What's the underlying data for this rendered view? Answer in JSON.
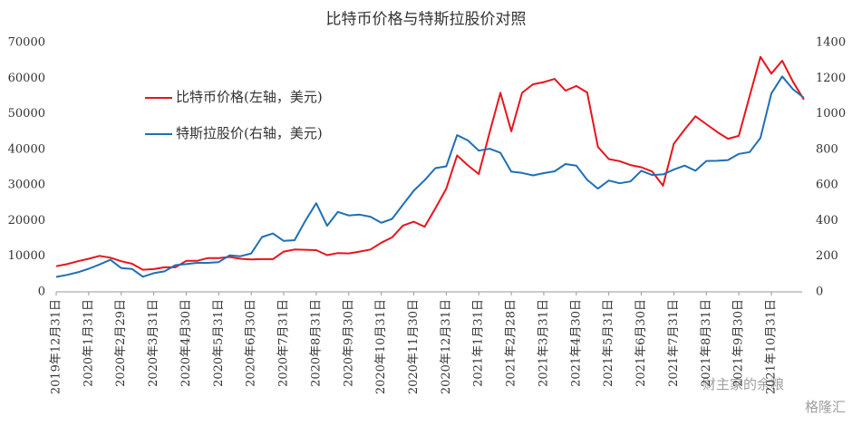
{
  "chart_data": {
    "type": "line",
    "title": "比特币价格与特斯拉股价对照",
    "categories": [
      "2019年12月31日",
      null,
      null,
      "2020年1月31日",
      null,
      null,
      "2020年2月29日",
      null,
      null,
      "2020年3月31日",
      null,
      null,
      "2020年4月30日",
      null,
      null,
      "2020年5月31日",
      null,
      null,
      "2020年6月30日",
      null,
      null,
      "2020年7月31日",
      null,
      null,
      "2020年8月31日",
      null,
      null,
      "2020年9月30日",
      null,
      null,
      "2020年10月31日",
      null,
      null,
      "2020年11月30日",
      null,
      null,
      "2020年12月31日",
      null,
      null,
      "2021年1月31日",
      null,
      null,
      "2021年2月28日",
      null,
      null,
      "2021年3月31日",
      null,
      null,
      "2021年4月30日",
      null,
      null,
      "2021年5月31日",
      null,
      null,
      "2021年6月30日",
      null,
      null,
      "2021年7月31日",
      null,
      null,
      "2021年8月31日",
      null,
      null,
      "2021年9月30日",
      null,
      null,
      "2021年10月31日",
      null,
      null,
      null
    ],
    "series": [
      {
        "name": "比特币价格(左轴，美元)",
        "color": "#e8141c",
        "axis": "y",
        "values": [
          7200,
          7800,
          8600,
          9300,
          10100,
          9600,
          8600,
          7900,
          6200,
          6400,
          6900,
          6900,
          8700,
          8700,
          9500,
          9500,
          9800,
          9300,
          9100,
          9200,
          9200,
          11300,
          11900,
          11800,
          11700,
          10300,
          10900,
          10800,
          11300,
          11900,
          13800,
          15300,
          18600,
          19700,
          18300,
          23500,
          29000,
          38300,
          35500,
          33100,
          44800,
          55900,
          45100,
          55900,
          58300,
          58900,
          59800,
          56500,
          57800,
          56000,
          40700,
          37300,
          36700,
          35600,
          35000,
          33800,
          29800,
          41600,
          45600,
          49300,
          47100,
          44900,
          43000,
          43800,
          55000,
          66000,
          61300,
          64900,
          59000,
          54000
        ]
      },
      {
        "name": "特斯拉股价(右轴，美元)",
        "color": "#1f6fb5",
        "axis": "y2",
        "values": [
          84,
          95,
          110,
          130,
          154,
          180,
          134,
          129,
          85,
          105,
          115,
          150,
          156,
          163,
          163,
          167,
          205,
          200,
          216,
          308,
          328,
          286,
          290,
          400,
          498,
          371,
          449,
          429,
          434,
          422,
          388,
          410,
          489,
          568,
          627,
          695,
          705,
          880,
          850,
          793,
          804,
          781,
          675,
          668,
          654,
          667,
          677,
          718,
          709,
          629,
          580,
          625,
          610,
          620,
          680,
          656,
          660,
          687,
          709,
          680,
          735,
          736,
          740,
          775,
          785,
          865,
          1114,
          1210,
          1138,
          1090
        ]
      }
    ],
    "ylim": [
      0,
      70000
    ],
    "yticks": [
      0,
      10000,
      20000,
      30000,
      40000,
      50000,
      60000,
      70000
    ],
    "y2lim": [
      0,
      1400
    ],
    "y2ticks": [
      0,
      200,
      400,
      600,
      800,
      1000,
      1200,
      1400
    ],
    "grid": false,
    "legend": "upper left",
    "watermarks": [
      "财主家的余粮",
      "格隆汇"
    ]
  }
}
